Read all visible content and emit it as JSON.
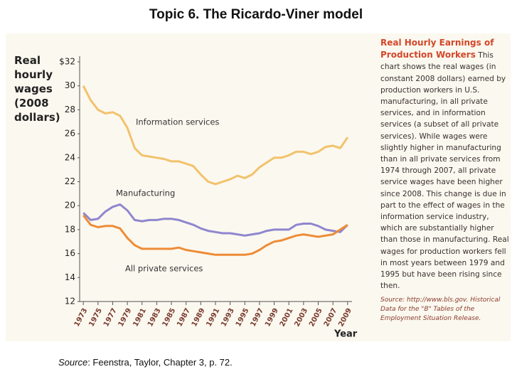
{
  "slide_title": "Topic 6. The Ricardo-Viner model",
  "chart_data": {
    "type": "line",
    "ylabel": "Real hourly wages (2008 dollars)",
    "xlabel": "Year",
    "x": [
      1973,
      1974,
      1975,
      1976,
      1977,
      1978,
      1979,
      1980,
      1981,
      1982,
      1983,
      1984,
      1985,
      1986,
      1987,
      1988,
      1989,
      1990,
      1991,
      1992,
      1993,
      1994,
      1995,
      1996,
      1997,
      1998,
      1999,
      2000,
      2001,
      2002,
      2003,
      2004,
      2005,
      2006,
      2007,
      2008,
      2009
    ],
    "series": [
      {
        "name": "Information services",
        "color": "#f2c26c",
        "values": [
          30,
          28.8,
          28,
          27.7,
          27.8,
          27.5,
          26.5,
          24.8,
          24.2,
          24.1,
          24,
          23.9,
          23.7,
          23.7,
          23.5,
          23.3,
          22.6,
          22,
          21.8,
          22,
          22.2,
          22.5,
          22.3,
          22.6,
          23.2,
          23.6,
          24,
          24,
          24.2,
          24.5,
          24.5,
          24.3,
          24.5,
          24.9,
          25,
          24.8,
          25.7
        ]
      },
      {
        "name": "Manufacturing",
        "color": "#8f86cf",
        "values": [
          19.4,
          18.8,
          18.9,
          19.5,
          19.9,
          20.1,
          19.6,
          18.8,
          18.7,
          18.8,
          18.8,
          18.9,
          18.9,
          18.8,
          18.6,
          18.4,
          18.1,
          17.9,
          17.8,
          17.7,
          17.7,
          17.6,
          17.5,
          17.6,
          17.7,
          17.9,
          18,
          18,
          18,
          18.4,
          18.5,
          18.5,
          18.3,
          18,
          17.9,
          17.8,
          18.4
        ]
      },
      {
        "name": "All private services",
        "color": "#ee8c36",
        "values": [
          19.2,
          18.4,
          18.2,
          18.3,
          18.3,
          18.1,
          17.3,
          16.7,
          16.4,
          16.4,
          16.4,
          16.4,
          16.4,
          16.5,
          16.3,
          16.2,
          16.1,
          16,
          15.9,
          15.9,
          15.9,
          15.9,
          15.9,
          16,
          16.3,
          16.7,
          17,
          17.1,
          17.3,
          17.5,
          17.6,
          17.5,
          17.4,
          17.5,
          17.6,
          18,
          18.4
        ]
      }
    ],
    "xlim": [
      1972.5,
      2009.6
    ],
    "xticks": [
      1973,
      1975,
      1977,
      1979,
      1981,
      1983,
      1985,
      1987,
      1989,
      1991,
      1993,
      1995,
      1997,
      1999,
      2001,
      2003,
      2005,
      2007,
      2009
    ],
    "ylim": [
      12,
      32
    ],
    "yticks": [
      12,
      14,
      16,
      18,
      20,
      22,
      24,
      26,
      28,
      30,
      {
        "value": 32,
        "label": "$32"
      }
    ],
    "grid": false
  },
  "caption": {
    "title": "Real Hourly Earnings of Production Workers",
    "text": "This chart shows the real wages (in constant 2008 dollars) earned by production workers in U.S. manufacturing, in all private services, and in information services (a subset of all private services). While wages were slightly higher in manufacturing than in all private services from 1974 through 2007, all private service wages have been higher since 2008. This change is due in part to the effect of wages in the information service industry, which are substantially higher than those in manufacturing. Real wages for production workers fell in most years between 1979 and 1995 but have been rising since then.",
    "source": "Source: http://www.bls.gov. Historical Data for the \"B\" Tables of the Employment Situation Release."
  },
  "footer": {
    "label": "Source",
    "text": ": Feenstra, Taylor, Chapter 3, p. 72."
  }
}
